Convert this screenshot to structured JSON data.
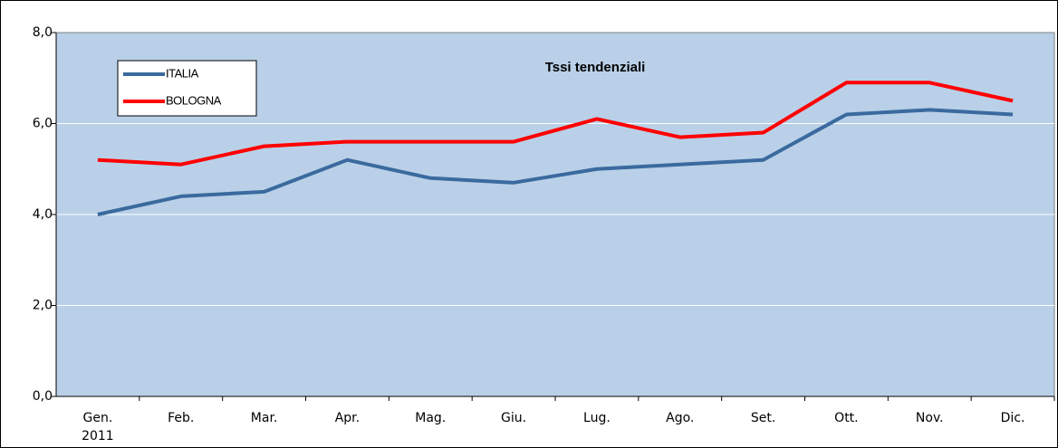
{
  "chart_data": {
    "type": "line",
    "title": "Tssi tendenziali",
    "categories": [
      "Gen.\n2011",
      "Feb.",
      "Mar.",
      "Apr.",
      "Mag.",
      "Giu.",
      "Lug.",
      "Ago.",
      "Set.",
      "Ott.",
      "Nov.",
      "Dic."
    ],
    "series": [
      {
        "name": "ITALIA",
        "color": "#3a6a9e",
        "values": [
          4.0,
          4.4,
          4.5,
          5.2,
          4.8,
          4.7,
          5.0,
          5.1,
          5.2,
          6.2,
          6.3,
          6.2
        ]
      },
      {
        "name": "BOLOGNA",
        "color": "#ff0000",
        "values": [
          5.2,
          5.1,
          5.5,
          5.6,
          5.6,
          5.6,
          6.1,
          5.7,
          5.8,
          6.9,
          6.9,
          6.5
        ]
      }
    ],
    "ylim": [
      0,
      8
    ],
    "yticks": [
      {
        "value": 0,
        "label": "0,0"
      },
      {
        "value": 2,
        "label": "2,0"
      },
      {
        "value": 4,
        "label": "4,0"
      },
      {
        "value": 6,
        "label": "6,0"
      },
      {
        "value": 8,
        "label": "8,0"
      }
    ],
    "grid": true,
    "legend": "upper left"
  }
}
